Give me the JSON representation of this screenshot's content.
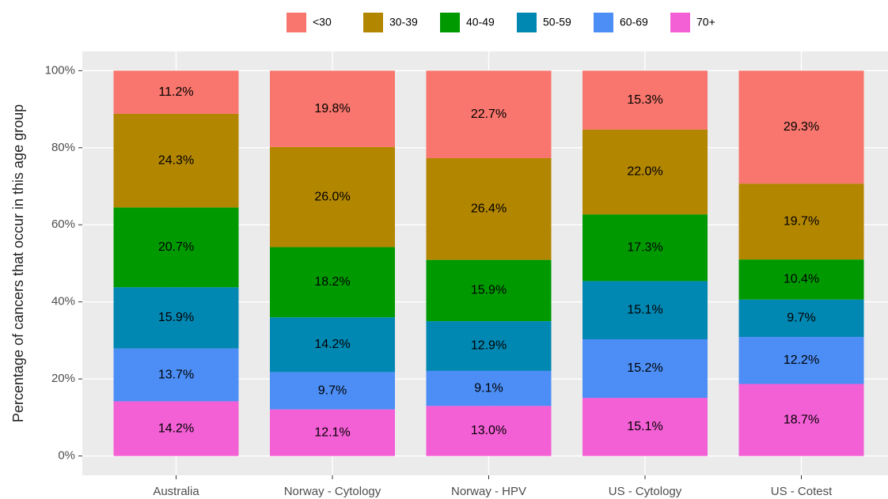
{
  "chart_data": {
    "type": "stacked_bar",
    "y_label": "Percentage of cancers that occur in this age group",
    "categories": [
      "Australia",
      "Norway - Cytology",
      "Norway - HPV",
      "US - Cytology",
      "US - Cotest"
    ],
    "series": [
      {
        "name": "<30",
        "color": "#F8766D",
        "values": [
          11.2,
          19.8,
          22.7,
          15.3,
          29.3
        ],
        "value_labels": [
          "11.2%",
          "19.8%",
          "22.7%",
          "15.3%",
          "29.3%"
        ]
      },
      {
        "name": "30-39",
        "color": "#B38600",
        "values": [
          24.3,
          26.0,
          26.4,
          22.0,
          19.7
        ],
        "value_labels": [
          "24.3%",
          "26.0%",
          "26.4%",
          "22.0%",
          "19.7%"
        ]
      },
      {
        "name": "40-49",
        "color": "#009A00",
        "values": [
          20.7,
          18.2,
          15.9,
          17.3,
          10.4
        ],
        "value_labels": [
          "20.7%",
          "18.2%",
          "15.9%",
          "17.3%",
          "10.4%"
        ]
      },
      {
        "name": "50-59",
        "color": "#0087B2",
        "values": [
          15.9,
          14.2,
          12.9,
          15.1,
          9.7
        ],
        "value_labels": [
          "15.9%",
          "14.2%",
          "12.9%",
          "15.1%",
          "9.7%"
        ]
      },
      {
        "name": "60-69",
        "color": "#4C8EF5",
        "values": [
          13.7,
          9.7,
          9.1,
          15.2,
          12.2
        ],
        "value_labels": [
          "13.7%",
          "9.7%",
          "9.1%",
          "15.2%",
          "12.2%"
        ]
      },
      {
        "name": "70+",
        "color": "#F35FD5",
        "values": [
          14.2,
          12.1,
          13.0,
          15.1,
          18.7
        ],
        "value_labels": [
          "14.2%",
          "12.1%",
          "13.0%",
          "15.1%",
          "18.7%"
        ]
      }
    ],
    "ylim": [
      -5,
      105
    ],
    "yticks": [
      {
        "value": 0,
        "label": "0%"
      },
      {
        "value": 20,
        "label": "20%"
      },
      {
        "value": 40,
        "label": "40%"
      },
      {
        "value": 60,
        "label": "60%"
      },
      {
        "value": 80,
        "label": "80%"
      },
      {
        "value": 100,
        "label": "100%"
      }
    ],
    "grid": true,
    "legend": "top"
  }
}
